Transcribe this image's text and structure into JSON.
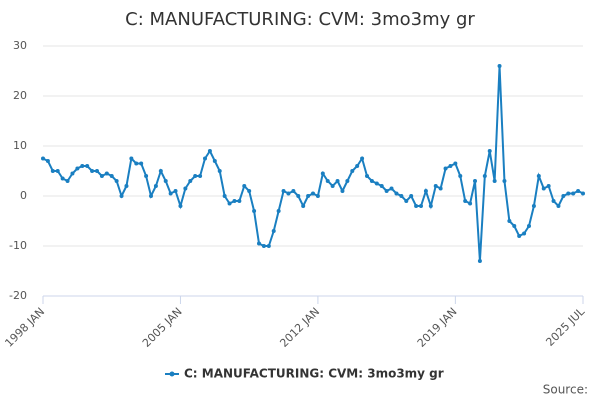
{
  "chart_data": {
    "type": "line",
    "title": "C: MANUFACTURING: CVM: 3mo3my gr",
    "source": "Source:",
    "x": [
      1998,
      1998.25,
      1998.5,
      1998.75,
      1999,
      1999.25,
      1999.5,
      1999.75,
      2000,
      2000.25,
      2000.5,
      2000.75,
      2001,
      2001.25,
      2001.5,
      2001.75,
      2002,
      2002.25,
      2002.5,
      2002.75,
      2003,
      2003.25,
      2003.5,
      2003.75,
      2004,
      2004.25,
      2004.5,
      2004.75,
      2005,
      2005.25,
      2005.5,
      2005.75,
      2006,
      2006.25,
      2006.5,
      2006.75,
      2007,
      2007.25,
      2007.5,
      2007.75,
      2008,
      2008.25,
      2008.5,
      2008.75,
      2009,
      2009.25,
      2009.5,
      2009.75,
      2010,
      2010.25,
      2010.5,
      2010.75,
      2011,
      2011.25,
      2011.5,
      2011.75,
      2012,
      2012.25,
      2012.5,
      2012.75,
      2013,
      2013.25,
      2013.5,
      2013.75,
      2014,
      2014.25,
      2014.5,
      2014.75,
      2015,
      2015.25,
      2015.5,
      2015.75,
      2016,
      2016.25,
      2016.5,
      2016.75,
      2017,
      2017.25,
      2017.5,
      2017.75,
      2018,
      2018.25,
      2018.5,
      2018.75,
      2019,
      2019.25,
      2019.5,
      2019.75,
      2020,
      2020.25,
      2020.5,
      2020.75,
      2021,
      2021.25,
      2021.5,
      2021.75,
      2022,
      2022.25,
      2022.5,
      2022.75,
      2023,
      2023.25,
      2023.5,
      2023.75,
      2024,
      2024.25,
      2024.5,
      2024.75,
      2025,
      2025.25,
      2025.5
    ],
    "series": [
      {
        "name": "C: MANUFACTURING: CVM: 3mo3my gr",
        "color": "#1a7fc1",
        "values": [
          7.5,
          7,
          5,
          5,
          3.5,
          3,
          4.5,
          5.5,
          6,
          6,
          5,
          5,
          4,
          4.5,
          4,
          3,
          0,
          2,
          7.5,
          6.5,
          6.5,
          4,
          0,
          2,
          5,
          3,
          0.5,
          1,
          -2,
          1.5,
          3,
          4,
          4,
          7.5,
          9,
          7,
          5,
          0,
          -1.5,
          -1,
          -1,
          2,
          1,
          -3,
          -9.5,
          -10,
          -10,
          -7,
          -3,
          1,
          0.5,
          1,
          0,
          -2,
          0,
          0.5,
          0,
          4.5,
          3,
          2,
          3,
          1,
          3,
          5,
          6,
          7.5,
          4,
          3,
          2.5,
          2,
          1,
          1.5,
          0.5,
          0,
          -1,
          0,
          -2,
          -2,
          1,
          -2,
          2,
          1.5,
          5.5,
          6,
          6.5,
          4,
          -1,
          -1.5,
          3,
          -13,
          4,
          9,
          3,
          26,
          3,
          -5,
          -6,
          -8,
          -7.5,
          -6,
          -2,
          4,
          1.5,
          2,
          -1,
          -2,
          0,
          0.5,
          0.5,
          1,
          0.5
        ]
      }
    ],
    "xlim": [
      1998,
      2025.5
    ],
    "xticks": [
      {
        "value": 1998,
        "label": "1998 JAN"
      },
      {
        "value": 2005,
        "label": "2005 JAN"
      },
      {
        "value": 2012,
        "label": "2012 JAN"
      },
      {
        "value": 2019,
        "label": "2019 JAN"
      },
      {
        "value": 2025.5,
        "label": "2025 JUL"
      }
    ],
    "ylim": [
      -20,
      30
    ],
    "yticks": [
      -20,
      -10,
      0,
      10,
      20,
      30
    ],
    "grid": true
  }
}
